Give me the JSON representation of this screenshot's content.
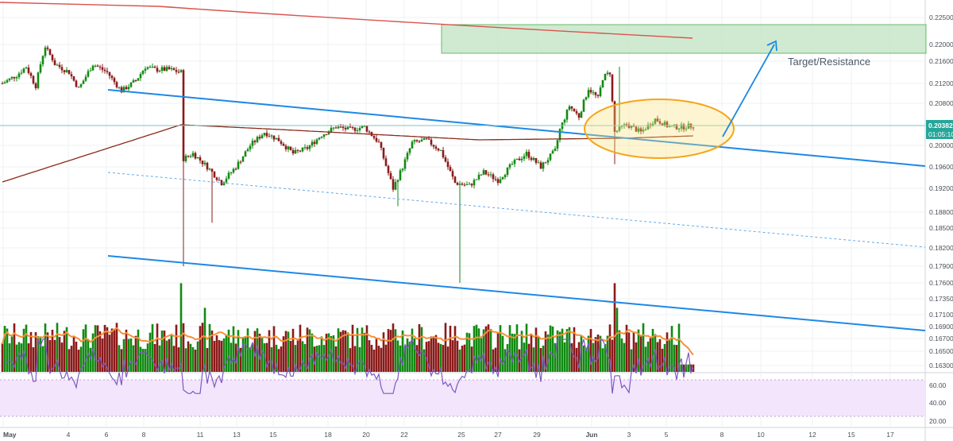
{
  "chart_data": {
    "type": "candlestick",
    "price_axis": {
      "ticks": [
        "0.22500",
        "0.22000",
        "0.21600",
        "0.21200",
        "0.20800",
        "0.20000",
        "0.19600",
        "0.19200",
        "0.18800",
        "0.18500",
        "0.18200",
        "0.17900",
        "0.17600",
        "0.17350",
        "0.17100",
        "0.16900",
        "0.16700",
        "0.16500",
        "0.16300"
      ],
      "current_price": "0.20382",
      "countdown": "01:05:10"
    },
    "rsi_axis": {
      "ticks": [
        "60.00",
        "40.00",
        "20.00"
      ],
      "band": [
        30,
        70
      ]
    },
    "time_axis": {
      "ticks": [
        "May",
        "4",
        "6",
        "8",
        "11",
        "13",
        "15",
        "18",
        "20",
        "22",
        "25",
        "27",
        "29",
        "Jun",
        "3",
        "5",
        "8",
        "10",
        "12",
        "15",
        "17"
      ],
      "bold": [
        "May",
        "Jun"
      ]
    },
    "annotations": {
      "target_label": "Target/Resistance"
    },
    "colors": {
      "up": "#128a12",
      "down": "#8b1a1a",
      "trendline": "#1e88e5",
      "ma_long": "#d9534f",
      "ma_mid": "#8b2a1a",
      "volume_ma": "#f5913a",
      "rsi": "#7e57c2",
      "rsi_bg": "#f3e5fb",
      "zone": "#c8e6c9",
      "ellipse": "#f6a51a"
    },
    "series": {
      "seed": 7,
      "anchors": [
        [
          0,
          0.212
        ],
        [
          6,
          0.2135
        ],
        [
          10,
          0.215
        ],
        [
          14,
          0.2115
        ],
        [
          18,
          0.2195
        ],
        [
          22,
          0.2155
        ],
        [
          28,
          0.214
        ],
        [
          32,
          0.211
        ],
        [
          38,
          0.2155
        ],
        [
          44,
          0.214
        ],
        [
          50,
          0.2105
        ],
        [
          56,
          0.2125
        ],
        [
          60,
          0.215
        ],
        [
          64,
          0.2145
        ],
        [
          70,
          0.2145
        ],
        [
          75,
          0.214
        ],
        [
          76,
          0.1975
        ],
        [
          80,
          0.1985
        ],
        [
          86,
          0.196
        ],
        [
          92,
          0.193
        ],
        [
          98,
          0.196
        ],
        [
          104,
          0.2
        ],
        [
          110,
          0.2025
        ],
        [
          116,
          0.201
        ],
        [
          122,
          0.1985
        ],
        [
          128,
          0.1995
        ],
        [
          134,
          0.202
        ],
        [
          140,
          0.2035
        ],
        [
          146,
          0.203
        ],
        [
          152,
          0.2035
        ],
        [
          158,
          0.2005
        ],
        [
          164,
          0.192
        ],
        [
          168,
          0.196
        ],
        [
          172,
          0.2005
        ],
        [
          178,
          0.201
        ],
        [
          184,
          0.199
        ],
        [
          190,
          0.193
        ],
        [
          196,
          0.1925
        ],
        [
          202,
          0.195
        ],
        [
          208,
          0.1935
        ],
        [
          214,
          0.1965
        ],
        [
          220,
          0.1985
        ],
        [
          226,
          0.196
        ],
        [
          232,
          0.199
        ],
        [
          234,
          0.203
        ],
        [
          238,
          0.2075
        ],
        [
          242,
          0.2055
        ],
        [
          246,
          0.211
        ],
        [
          250,
          0.209
        ],
        [
          252,
          0.213
        ],
        [
          255,
          0.214
        ],
        [
          257,
          0.2025
        ],
        [
          262,
          0.204
        ],
        [
          268,
          0.2025
        ],
        [
          274,
          0.205
        ],
        [
          280,
          0.2035
        ],
        [
          286,
          0.2035
        ],
        [
          290,
          0.2038
        ]
      ],
      "spikes": [
        [
          76,
          0.179
        ],
        [
          88,
          0.186
        ],
        [
          166,
          0.189
        ],
        [
          192,
          0.176
        ],
        [
          257,
          0.1965
        ],
        [
          259,
          0.215
        ]
      ]
    }
  }
}
